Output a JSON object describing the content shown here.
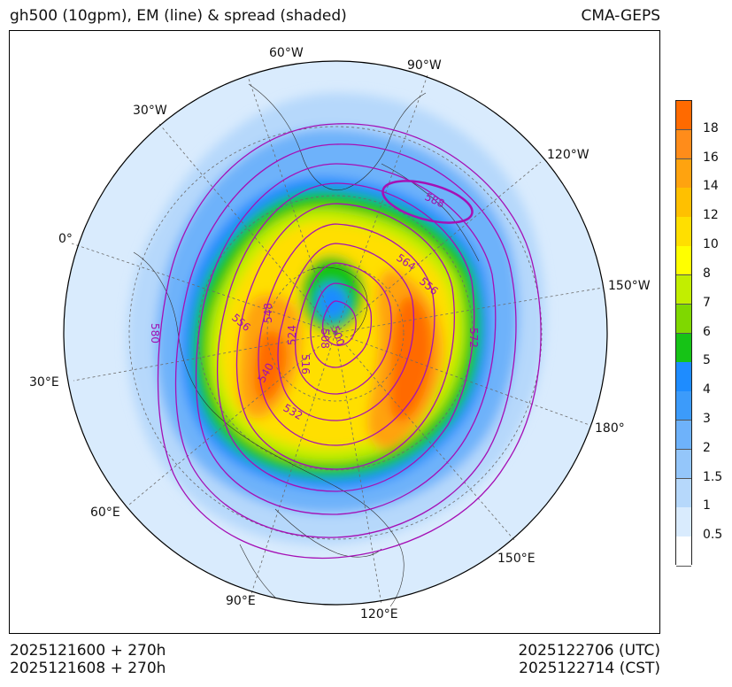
{
  "header": {
    "title": "gh500 (10gpm), EM (line) & spread (shaded)",
    "model": "CMA-GEPS"
  },
  "footer": {
    "init_utc": "2025121600 + 270h",
    "init_cst": "2025121608 + 270h",
    "valid_utc": "2025122706 (UTC)",
    "valid_cst": "2025122714 (CST)"
  },
  "map": {
    "projection": "north polar stereographic",
    "longitude_labels": [
      "60°W",
      "90°W",
      "30°W",
      "120°W",
      "0°",
      "150°W",
      "30°E",
      "180°",
      "60°E",
      "150°E",
      "90°E",
      "120°E"
    ],
    "contour_labels": [
      "588",
      "564",
      "556",
      "548",
      "524",
      "500",
      "556",
      "580",
      "540",
      "508",
      "516",
      "572",
      "532"
    ],
    "line_color": "#a510b5"
  },
  "colorbar": {
    "levels": [
      "18",
      "16",
      "14",
      "12",
      "10",
      "8",
      "7",
      "6",
      "5",
      "4",
      "3",
      "2",
      "1.5",
      "1",
      "0.5"
    ],
    "colors": [
      "#ff6a00",
      "#ff8c1a",
      "#ffa30f",
      "#ffc000",
      "#ffdf00",
      "#ffff00",
      "#c2ee00",
      "#7fd800",
      "#16c316",
      "#1e8cff",
      "#3c9bfa",
      "#6eb2fa",
      "#94c6fa",
      "#b6d8fb",
      "#d9ebfd",
      "#ffffff"
    ]
  }
}
